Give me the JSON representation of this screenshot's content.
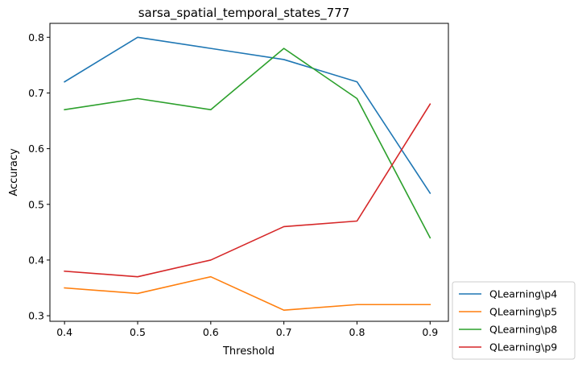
{
  "chart_data": {
    "type": "line",
    "title": "sarsa_spatial_temporal_states_777",
    "xlabel": "Threshold",
    "ylabel": "Accuracy",
    "x": [
      0.4,
      0.5,
      0.6,
      0.7,
      0.8,
      0.9
    ],
    "x_ticks": [
      "0.4",
      "0.5",
      "0.6",
      "0.7",
      "0.8",
      "0.9"
    ],
    "y_ticks": [
      "0.3",
      "0.4",
      "0.5",
      "0.6",
      "0.7",
      "0.8"
    ],
    "xlim": [
      0.38,
      0.925
    ],
    "ylim": [
      0.29,
      0.825
    ],
    "grid": false,
    "legend_position": "outside-bottom-right",
    "series": [
      {
        "name": "QLearning\\p4",
        "color": "#1f77b4",
        "values": [
          0.72,
          0.8,
          0.78,
          0.76,
          0.72,
          0.52
        ]
      },
      {
        "name": "QLearning\\p5",
        "color": "#ff7f0e",
        "values": [
          0.35,
          0.34,
          0.37,
          0.31,
          0.32,
          0.32
        ]
      },
      {
        "name": "QLearning\\p8",
        "color": "#2ca02c",
        "values": [
          0.67,
          0.69,
          0.67,
          0.78,
          0.69,
          0.44
        ]
      },
      {
        "name": "QLearning\\p9",
        "color": "#d62728",
        "values": [
          0.38,
          0.37,
          0.4,
          0.46,
          0.47,
          0.68
        ]
      }
    ]
  }
}
